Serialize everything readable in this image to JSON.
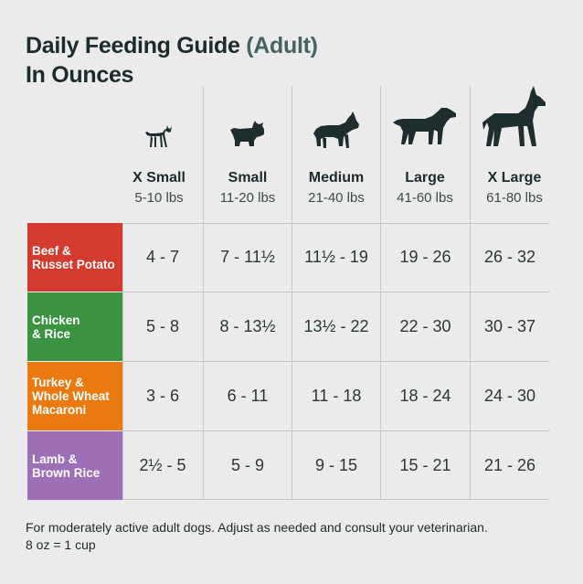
{
  "title": {
    "line1_main": "Daily Feeding Guide",
    "line1_accent": "(Adult)",
    "line2": "In Ounces"
  },
  "columns": [
    {
      "name": "X Small",
      "range": "5-10 lbs",
      "icon": "chihuahua-icon"
    },
    {
      "name": "Small",
      "range": "11-20 lbs",
      "icon": "bulldog-icon"
    },
    {
      "name": "Medium",
      "range": "21-40 lbs",
      "icon": "pitbull-icon"
    },
    {
      "name": "Large",
      "range": "41-60 lbs",
      "icon": "labrador-icon"
    },
    {
      "name": "X Large",
      "range": "61-80 lbs",
      "icon": "great-dane-icon"
    }
  ],
  "rows": [
    {
      "label": "Beef &\nRusset Potato",
      "color": "#d23b2d",
      "values": [
        "4 - 7",
        "7 - 11½",
        "11½ - 19",
        "19 - 26",
        "26 - 32"
      ]
    },
    {
      "label": "Chicken\n& Rice",
      "color": "#3b9342",
      "values": [
        "5 - 8",
        "8 - 13½",
        "13½ - 22",
        "22 - 30",
        "30 - 37"
      ]
    },
    {
      "label": "Turkey &\nWhole Wheat\nMacaroni",
      "color": "#ea7a10",
      "values": [
        "3 - 6",
        "6 - 11",
        "11 - 18",
        "18 - 24",
        "24 - 30"
      ]
    },
    {
      "label": "Lamb &\nBrown Rice",
      "color": "#9c6fb6",
      "values": [
        "2½ - 5",
        "5 - 9",
        "9 - 15",
        "15 - 21",
        "21 - 26"
      ]
    }
  ],
  "footnote": {
    "line1": "For moderately active adult dogs. Adjust as needed and consult your veterinarian.",
    "line2": "8 oz = 1 cup"
  }
}
